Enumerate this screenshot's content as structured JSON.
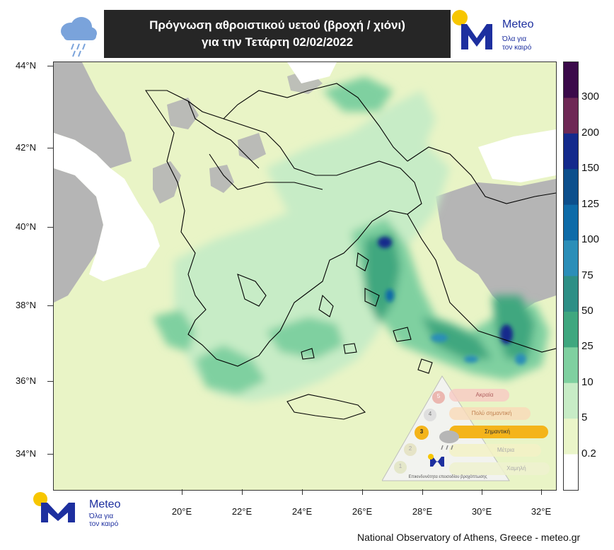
{
  "header": {
    "title_line1": "Πρόγνωση αθροιστικού υετού (βροχή / χιόνι)",
    "title_line2": "για την Τετάρτη 02/02/2022"
  },
  "logo": {
    "name": "Meteo",
    "tagline_1": "Όλα για",
    "tagline_2": "τον καιρό"
  },
  "colorbar": {
    "labels": [
      "300",
      "200",
      "150",
      "125",
      "100",
      "75",
      "50",
      "25",
      "10",
      "5",
      "0.2"
    ],
    "colors": [
      "#3b0a4a",
      "#6e2855",
      "#142a8c",
      "#0c4f8c",
      "#0e6ba8",
      "#2b8eb8",
      "#2e8f86",
      "#3fa77f",
      "#7fd0a0",
      "#c7ecc6",
      "#eaf5c9",
      "#ffffff"
    ]
  },
  "axes": {
    "lat_labels": [
      "44°N",
      "42°N",
      "40°N",
      "38°N",
      "36°N",
      "34°N"
    ],
    "lon_labels": [
      "20°E",
      "22°E",
      "24°E",
      "26°E",
      "28°E",
      "30°E",
      "32°E"
    ]
  },
  "legend_panel": {
    "levels": [
      {
        "num": "5",
        "text": "Ακραία"
      },
      {
        "num": "4",
        "text": "Πολύ σημαντική"
      },
      {
        "num": "3",
        "text": "Σημαντική"
      },
      {
        "num": "2",
        "text": "Μέτρια"
      },
      {
        "num": "1",
        "text": "Χαμηλή"
      }
    ],
    "footer": "Επικινδυνότητα επεισοδίου βροχόπτωσης"
  },
  "credit": "National Observatory of Athens, Greece - meteo.gr"
}
